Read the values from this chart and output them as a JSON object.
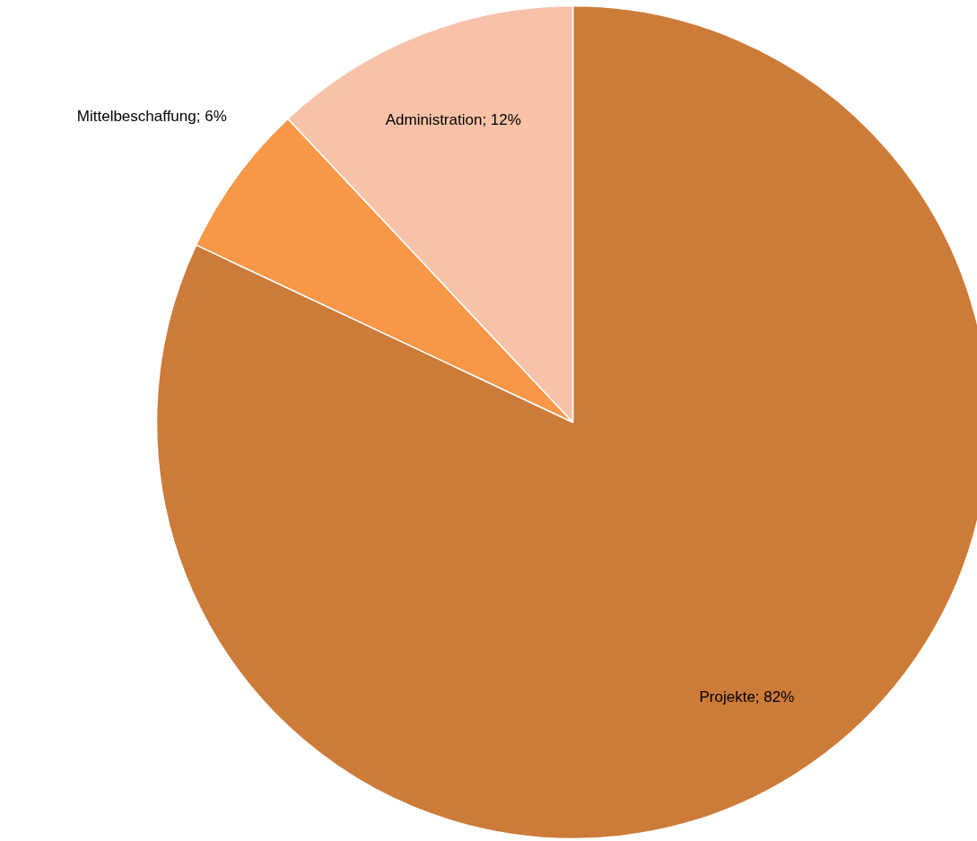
{
  "chart_data": {
    "type": "pie",
    "categories": [
      "Projekte",
      "Mittelbeschaffung",
      "Administration"
    ],
    "values": [
      82,
      6,
      12
    ],
    "colors": [
      "#cc7b39",
      "#f79747",
      "#f8c2a8"
    ],
    "value_labels": [
      "82%",
      "6%",
      "12%"
    ]
  }
}
